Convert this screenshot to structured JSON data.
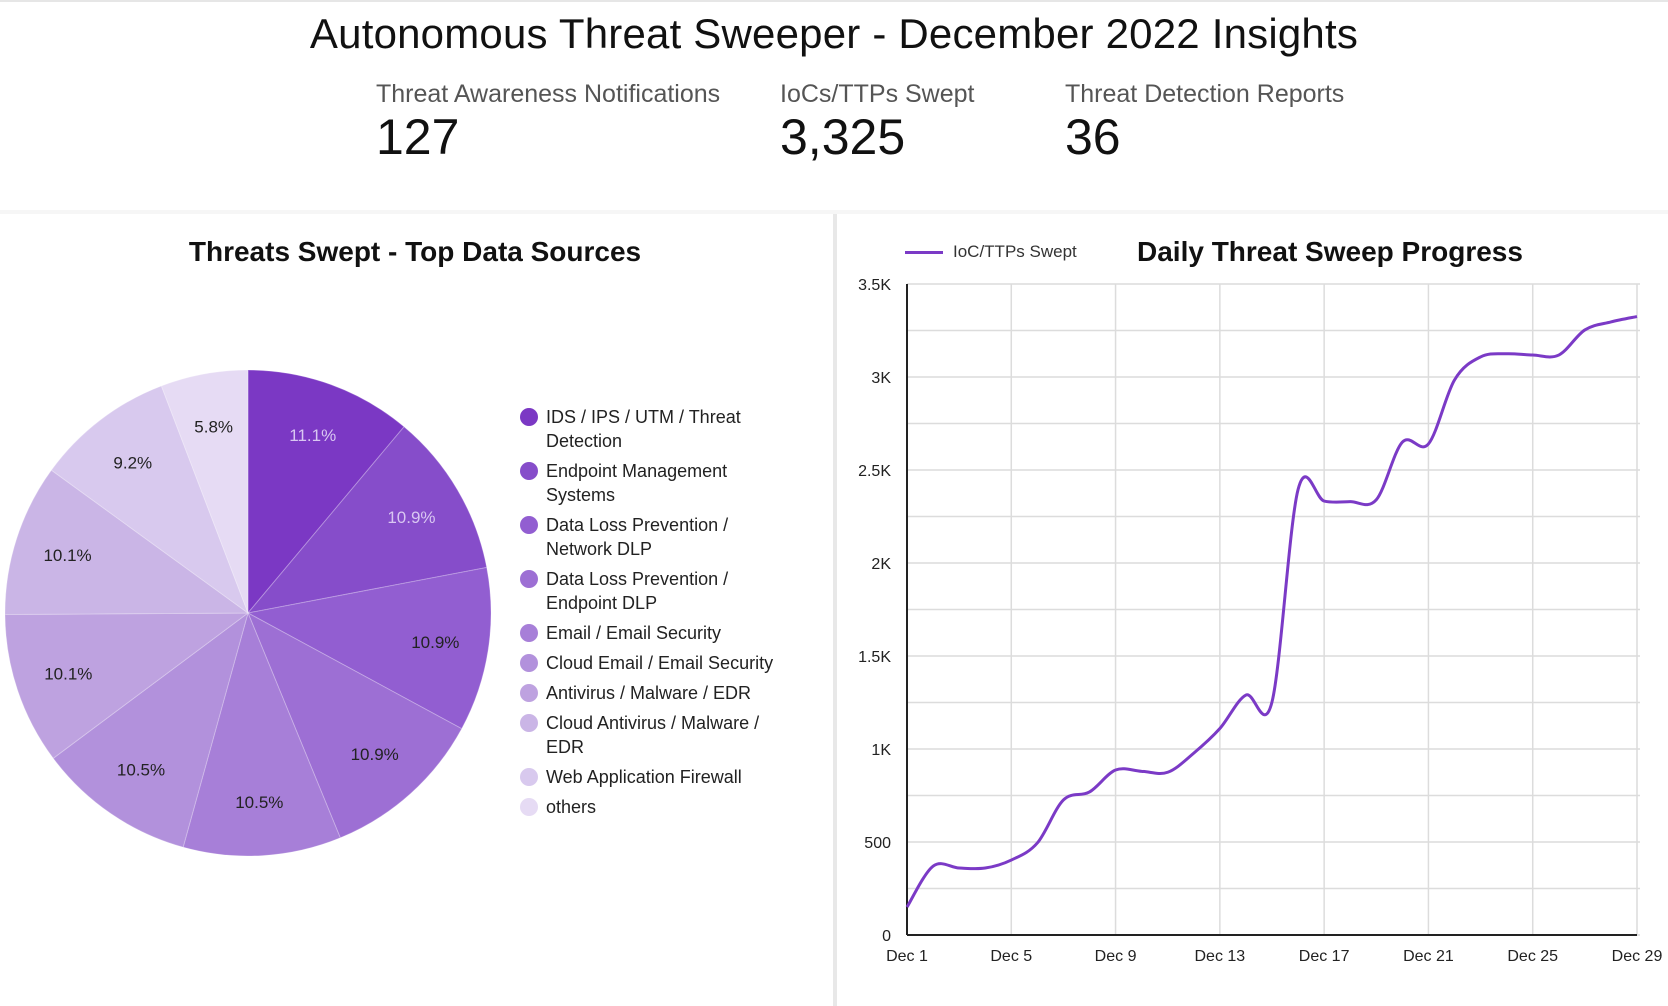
{
  "header": {
    "title": "Autonomous Threat Sweeper - December 2022 Insights",
    "kpis": [
      {
        "label": "Threat Awareness Notifications",
        "value": "127"
      },
      {
        "label": "IoCs/TTPs Swept",
        "value": "3,325"
      },
      {
        "label": "Threat Detection Reports",
        "value": "36"
      }
    ]
  },
  "chart_data": [
    {
      "type": "pie",
      "title": "Threats Swept - Top Data Sources",
      "legend_position": "right",
      "categories": [
        "IDS / IPS / UTM / Threat Detection",
        "Endpoint Management Systems",
        "Data Loss Prevention / Network DLP",
        "Data Loss Prevention / Endpoint DLP",
        "Email / Email Security",
        "Cloud Email / Email Security",
        "Antivirus / Malware / EDR",
        "Cloud Antivirus / Malware / EDR",
        "Web Application Firewall",
        "others"
      ],
      "legend_lines": [
        [
          "IDS / IPS / UTM / Threat",
          "Detection"
        ],
        [
          "Endpoint Management",
          "Systems"
        ],
        [
          "Data Loss Prevention /",
          "Network DLP"
        ],
        [
          "Data Loss Prevention /",
          "Endpoint DLP"
        ],
        [
          "Email / Email Security"
        ],
        [
          "Cloud Email / Email Security"
        ],
        [
          "Antivirus / Malware / EDR"
        ],
        [
          "Cloud Antivirus / Malware /",
          "EDR"
        ],
        [
          "Web Application Firewall"
        ],
        [
          "others"
        ]
      ],
      "values": [
        11.1,
        10.9,
        10.9,
        10.9,
        10.5,
        10.5,
        10.1,
        10.1,
        9.2,
        5.8
      ],
      "labels": [
        "11.1%",
        "10.9%",
        "10.9%",
        "10.9%",
        "10.5%",
        "10.5%",
        "10.1%",
        "10.1%",
        "9.2%",
        "5.8%"
      ],
      "colors": [
        "#7b38c4",
        "#864dca",
        "#925ed1",
        "#9d6fd4",
        "#a77fd8",
        "#b291dc",
        "#bea2e0",
        "#cab5e6",
        "#d8c9ee",
        "#e6dbf4"
      ],
      "label_colors": [
        "#d9c7f2",
        "#d9c7f2",
        "#222222",
        "#222222",
        "#222222",
        "#222222",
        "#222222",
        "#222222",
        "#222222",
        "#222222"
      ]
    },
    {
      "type": "line",
      "title": "Daily Threat Sweep Progress",
      "legend_position": "top-left",
      "series": [
        {
          "name": "IoC/TTPs Swept",
          "color": "#7b3ac6",
          "values": [
            150,
            370,
            360,
            360,
            403,
            495,
            726,
            769,
            887,
            880,
            875,
            978,
            1110,
            1290,
            1253,
            2395,
            2333,
            2330,
            2340,
            2650,
            2640,
            2984,
            3108,
            3125,
            3118,
            3118,
            3253,
            3296,
            3325
          ]
        }
      ],
      "x": [
        "Dec 1",
        "Dec 2",
        "Dec 3",
        "Dec 4",
        "Dec 5",
        "Dec 6",
        "Dec 7",
        "Dec 8",
        "Dec 9",
        "Dec 10",
        "Dec 11",
        "Dec 12",
        "Dec 13",
        "Dec 14",
        "Dec 15",
        "Dec 16",
        "Dec 17",
        "Dec 18",
        "Dec 19",
        "Dec 20",
        "Dec 21",
        "Dec 22",
        "Dec 23",
        "Dec 24",
        "Dec 25",
        "Dec 26",
        "Dec 27",
        "Dec 28",
        "Dec 29"
      ],
      "x_tick_labels": [
        "Dec 1",
        "Dec 5",
        "Dec 9",
        "Dec 13",
        "Dec 17",
        "Dec 21",
        "Dec 25",
        "Dec 29"
      ],
      "y_ticks": [
        0,
        500,
        1000,
        1500,
        2000,
        2500,
        3000,
        3500
      ],
      "y_tick_labels": [
        "0",
        "500",
        "1K",
        "1.5K",
        "2K",
        "2.5K",
        "3K",
        "3.5K"
      ],
      "y_minor_step": 250,
      "ylim": [
        0,
        3500
      ],
      "xlabel": "",
      "ylabel": "",
      "grid": true
    }
  ]
}
